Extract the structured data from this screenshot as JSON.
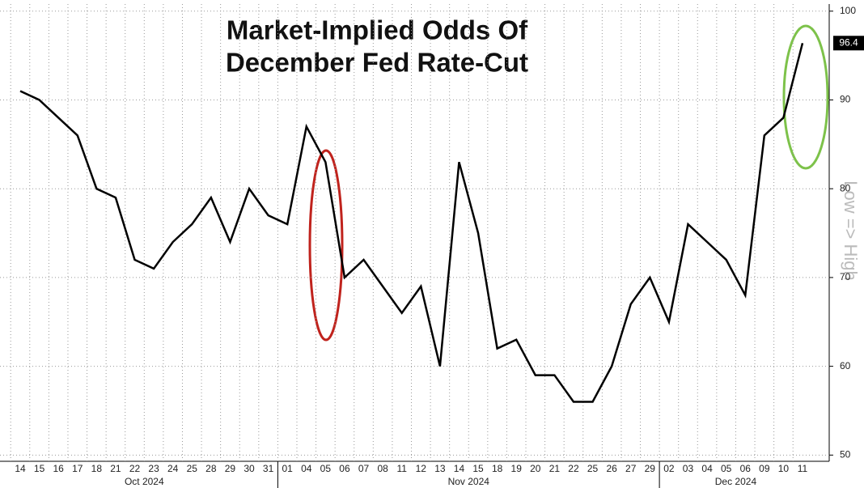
{
  "chart_data": {
    "type": "line",
    "title": [
      "Market-Implied Odds Of",
      "December Fed Rate-Cut"
    ],
    "y_axis_label": "Low => High",
    "categories": [
      "14",
      "15",
      "16",
      "17",
      "18",
      "21",
      "22",
      "23",
      "24",
      "25",
      "28",
      "29",
      "30",
      "31",
      "01",
      "04",
      "05",
      "06",
      "07",
      "08",
      "11",
      "12",
      "13",
      "14",
      "15",
      "18",
      "19",
      "20",
      "21",
      "22",
      "25",
      "26",
      "27",
      "29",
      "02",
      "03",
      "04",
      "05",
      "06",
      "09",
      "10",
      "11"
    ],
    "months": [
      "Oct 2024",
      "Nov 2024",
      "Dec 2024"
    ],
    "series": [
      {
        "name": "Odds",
        "color": "#000000",
        "values": [
          91,
          90,
          88,
          86,
          80,
          79,
          72,
          71,
          74,
          76,
          79,
          74,
          80,
          77,
          76,
          87,
          83,
          70,
          72,
          69,
          66,
          69,
          60,
          83,
          75,
          62,
          63,
          59,
          59,
          56,
          56,
          60,
          67,
          70,
          65,
          76,
          74,
          72,
          68,
          86,
          88,
          96.4
        ]
      }
    ],
    "ylim": [
      49.3,
      100.8
    ],
    "yticks": [
      50,
      60,
      70,
      80,
      90,
      100
    ],
    "grid": true
  }
}
